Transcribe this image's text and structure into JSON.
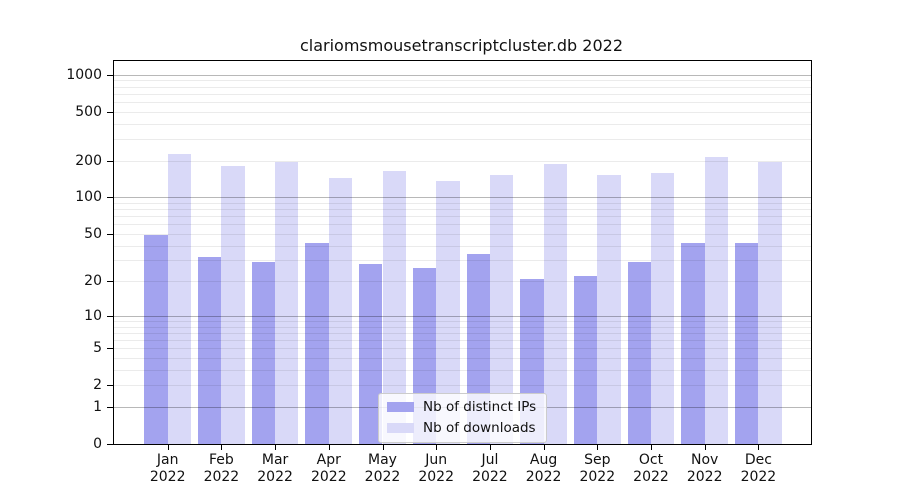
{
  "chart_data": {
    "type": "bar",
    "title": "clariomsmousetranscriptcluster.db 2022",
    "categories": [
      "Jan 2022",
      "Feb 2022",
      "Mar 2022",
      "Apr 2022",
      "May 2022",
      "Jun 2022",
      "Jul 2022",
      "Aug 2022",
      "Sep 2022",
      "Oct 2022",
      "Nov 2022",
      "Dec 2022"
    ],
    "series": [
      {
        "name": "Nb of distinct IPs",
        "color": "#a3a3ef",
        "values": [
          49,
          32,
          29,
          42,
          28,
          26,
          34,
          21,
          22,
          29,
          42,
          42
        ]
      },
      {
        "name": "Nb of downloads",
        "color": "#d9d9f8",
        "values": [
          225,
          180,
          195,
          145,
          165,
          135,
          152,
          187,
          152,
          159,
          212,
          195
        ]
      }
    ],
    "y_axis": {
      "scale": "log10(1+value)",
      "ticks": [
        0,
        1,
        2,
        5,
        10,
        20,
        50,
        100,
        200,
        500,
        1000
      ],
      "ylim": [
        0,
        1300
      ]
    },
    "x_axis": {
      "year_line": "2022"
    },
    "grid": {
      "horizontal": true,
      "major_at": [
        1,
        10,
        100,
        1000
      ],
      "minor": "2-9 per decade"
    },
    "legend": {
      "position": "bottom-center"
    }
  }
}
